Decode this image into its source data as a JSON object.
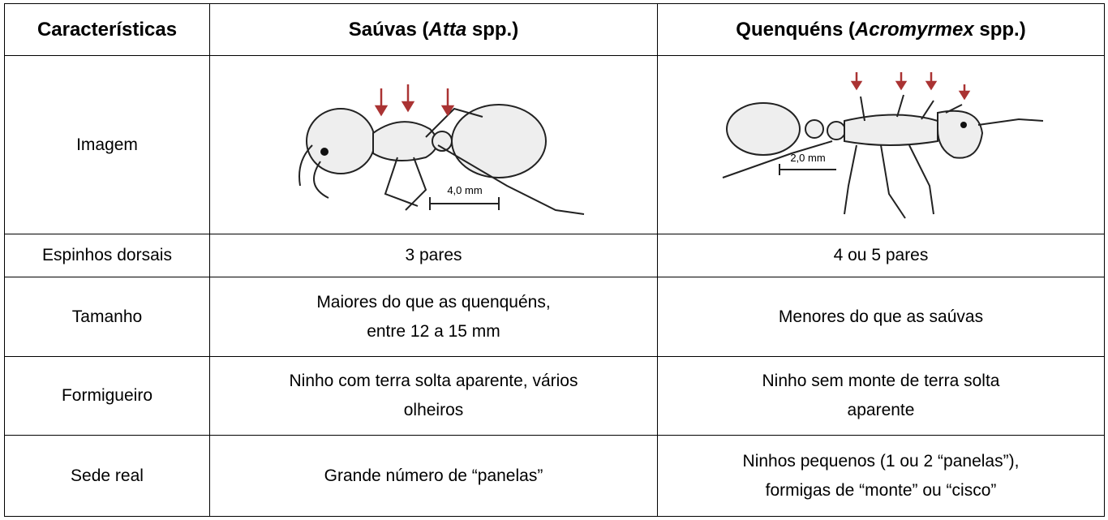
{
  "header": [
    {
      "text": "Características"
    },
    {
      "before": "Saúvas (",
      "italic": "Atta",
      "after": " spp.)"
    },
    {
      "before": "Quenquéns (",
      "italic": "Acromyrmex",
      "after": " spp.)"
    }
  ],
  "rows": [
    {
      "label": "Imagem",
      "images": [
        {
          "scale_label": "4,0 mm"
        },
        {
          "scale_label": "2,0 mm"
        }
      ]
    },
    {
      "label": "Espinhos dorsais",
      "cells": [
        [
          "3 pares"
        ],
        [
          "4 ou 5 pares"
        ]
      ]
    },
    {
      "label": "Tamanho",
      "cells": [
        [
          "Maiores do que as quenquéns,",
          "entre 12 a 15 mm"
        ],
        [
          "Menores do que as saúvas"
        ]
      ]
    },
    {
      "label": "Formigueiro",
      "cells": [
        [
          "Ninho com terra solta aparente, vários",
          "olheiros"
        ],
        [
          "Ninho sem monte de terra solta",
          "aparente"
        ]
      ]
    },
    {
      "label": "Sede real",
      "cells": [
        [
          "Grande número de “panelas”"
        ],
        [
          "Ninhos pequenos (1 ou 2 “panelas”),",
          "formigas de “monte” ou “cisco”"
        ]
      ]
    }
  ]
}
